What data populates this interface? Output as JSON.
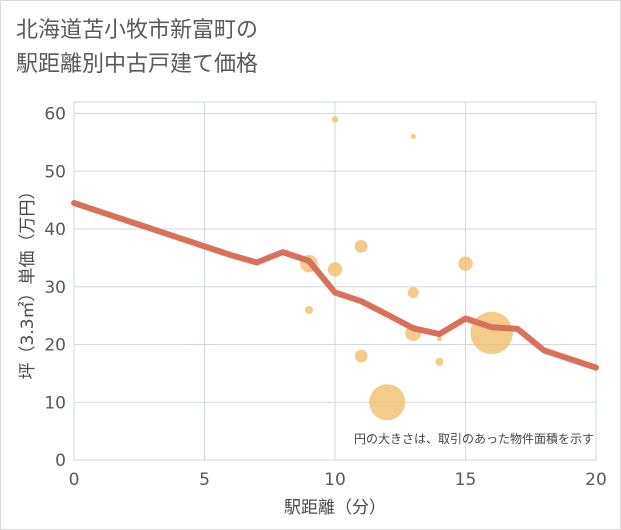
{
  "title_lines": [
    "北海道苫小牧市新富町の",
    "駅距離別中古戸建て価格"
  ],
  "chart_data": {
    "type": "scatter",
    "title": "北海道苫小牧市新富町の駅距離別中古戸建て価格",
    "xlabel": "駅距離（分）",
    "ylabel": "坪（3.3㎡）単価（万円）",
    "xlim": [
      0,
      20
    ],
    "ylim": [
      0,
      62
    ],
    "xticks": [
      0,
      5,
      10,
      15,
      20
    ],
    "yticks": [
      0,
      10,
      20,
      30,
      40,
      50,
      60
    ],
    "grid": true,
    "note": "円の大きさは、取引のあった物件面積を示す",
    "bubble_color": "#f0c070",
    "line_color": "#d9705a",
    "points": [
      {
        "x": 9,
        "y": 26,
        "size": 1
      },
      {
        "x": 9,
        "y": 34,
        "size": 2.2
      },
      {
        "x": 10,
        "y": 33,
        "size": 1.8
      },
      {
        "x": 10,
        "y": 59,
        "size": 0.8
      },
      {
        "x": 11,
        "y": 37,
        "size": 1.6
      },
      {
        "x": 11,
        "y": 18,
        "size": 1.6
      },
      {
        "x": 12,
        "y": 10,
        "size": 4.5
      },
      {
        "x": 13,
        "y": 22,
        "size": 2
      },
      {
        "x": 13,
        "y": 29,
        "size": 1.4
      },
      {
        "x": 13,
        "y": 56,
        "size": 0.5
      },
      {
        "x": 14,
        "y": 21,
        "size": 0.5
      },
      {
        "x": 14,
        "y": 17,
        "size": 1
      },
      {
        "x": 15,
        "y": 34,
        "size": 1.8
      },
      {
        "x": 16,
        "y": 22,
        "size": 5.3
      }
    ],
    "trend_line": {
      "x": [
        0,
        1,
        2,
        3,
        4,
        5,
        6,
        7,
        8,
        9,
        10,
        11,
        12,
        13,
        14,
        15,
        16,
        17,
        18,
        19,
        20
      ],
      "y": [
        44.5,
        43,
        41.5,
        40,
        38.5,
        37,
        35.5,
        34.2,
        36,
        34.5,
        29,
        27.5,
        25.2,
        22.8,
        21.8,
        24.5,
        23,
        22.7,
        19,
        17.5,
        16
      ]
    }
  }
}
